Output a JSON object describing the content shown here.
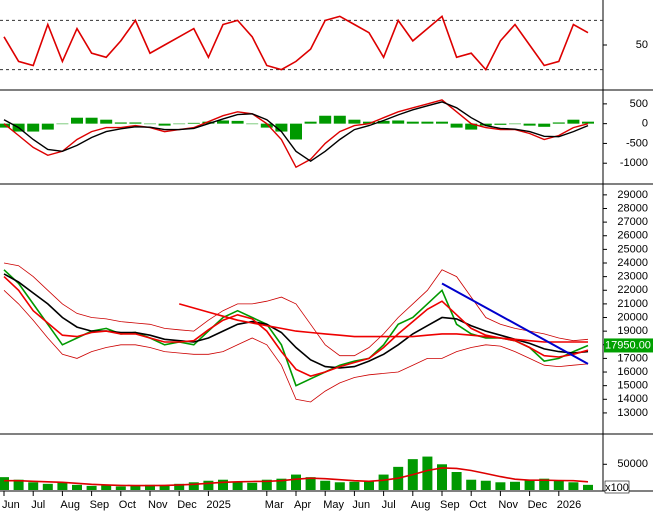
{
  "chart_data": [
    {
      "type": "line",
      "ylim": [
        0,
        100
      ],
      "yticks": [
        50
      ],
      "levels": [
        80,
        20
      ],
      "series": [
        {
          "color": "#dd0000",
          "values": [
            60,
            30,
            25,
            75,
            30,
            70,
            40,
            35,
            55,
            80,
            40,
            50,
            60,
            70,
            35,
            75,
            80,
            60,
            25,
            20,
            30,
            45,
            80,
            85,
            75,
            65,
            35,
            80,
            55,
            70,
            85,
            35,
            40,
            20,
            55,
            75,
            50,
            25,
            30,
            75,
            65
          ]
        }
      ]
    },
    {
      "type": "macd",
      "ylim": [
        -1500,
        800
      ],
      "yticks": [
        500,
        0,
        -500,
        -1000
      ],
      "histogram": {
        "color": "#009900",
        "values": [
          -100,
          -200,
          -200,
          -150,
          0,
          150,
          150,
          100,
          30,
          30,
          -10,
          -50,
          0,
          20,
          50,
          80,
          70,
          0,
          -100,
          -200,
          -400,
          50,
          200,
          200,
          100,
          50,
          70,
          80,
          50,
          50,
          50,
          -100,
          -150,
          -50,
          -30,
          -10,
          -50,
          -80,
          30,
          100,
          50
        ]
      },
      "series": [
        {
          "color": "#dd0000",
          "values": [
            0,
            -300,
            -600,
            -800,
            -700,
            -400,
            -200,
            -100,
            -100,
            -50,
            -100,
            -200,
            -150,
            -100,
            50,
            200,
            300,
            250,
            0,
            -400,
            -1100,
            -900,
            -500,
            -200,
            -50,
            0,
            150,
            300,
            400,
            500,
            600,
            300,
            0,
            -100,
            -150,
            -150,
            -250,
            -400,
            -300,
            -100,
            0
          ]
        },
        {
          "color": "#000000",
          "values": [
            100,
            -100,
            -400,
            -650,
            -700,
            -550,
            -350,
            -200,
            -130,
            -80,
            -90,
            -150,
            -150,
            -120,
            0,
            120,
            230,
            250,
            100,
            -200,
            -700,
            -950,
            -700,
            -400,
            -150,
            -50,
            80,
            220,
            350,
            450,
            550,
            400,
            150,
            -50,
            -120,
            -140,
            -200,
            -320,
            -330,
            -200,
            -50
          ]
        }
      ]
    },
    {
      "type": "price",
      "ylim": [
        11600,
        29650
      ],
      "yticks": [
        13000,
        14000,
        15000,
        16000,
        17000,
        18000,
        19000,
        20000,
        21000,
        22000,
        23000,
        24000,
        25000,
        26000,
        27000,
        28000,
        29000
      ],
      "series": [
        {
          "color": "#cc0000",
          "values": [
            24000,
            23800,
            23000,
            22000,
            21000,
            20300,
            20000,
            19900,
            19700,
            19600,
            19500,
            19200,
            19100,
            19000,
            19800,
            20500,
            21000,
            21000,
            21200,
            21500,
            21000,
            19500,
            18000,
            17200,
            17200,
            17800,
            18800,
            20000,
            21000,
            22000,
            23500,
            23000,
            21500,
            20000,
            19500,
            19200,
            19000,
            18800,
            18500,
            18300,
            18400
          ]
        },
        {
          "color": "#cc0000",
          "values": [
            22000,
            21000,
            19800,
            18500,
            17300,
            17000,
            17500,
            17800,
            18000,
            18000,
            17800,
            17500,
            17400,
            17300,
            17300,
            17500,
            18000,
            18500,
            18000,
            16500,
            14000,
            13800,
            14600,
            15200,
            15600,
            15800,
            15900,
            16000,
            16500,
            17000,
            17000,
            17500,
            17800,
            18000,
            17900,
            17500,
            17000,
            16500,
            16400,
            16500,
            16600
          ]
        },
        {
          "color": "#009900",
          "values": [
            23500,
            22500,
            21000,
            19500,
            18000,
            18500,
            19000,
            19200,
            18800,
            18900,
            18500,
            18000,
            18200,
            18000,
            19000,
            20000,
            20500,
            20000,
            19500,
            18000,
            15000,
            15500,
            16000,
            16500,
            16800,
            17000,
            18000,
            19500,
            20000,
            21000,
            22000,
            19500,
            18800,
            18500,
            18500,
            18300,
            17800,
            16800,
            17000,
            17500,
            17950
          ]
        },
        {
          "color": "#000000",
          "values": [
            23200,
            22600,
            21800,
            21000,
            20000,
            19300,
            19000,
            19000,
            18900,
            18900,
            18700,
            18400,
            18300,
            18200,
            18500,
            19000,
            19500,
            19700,
            19500,
            18900,
            17800,
            16900,
            16400,
            16300,
            16400,
            16800,
            17300,
            18000,
            18800,
            19400,
            20000,
            19900,
            19400,
            19000,
            18700,
            18400,
            18100,
            17700,
            17500,
            17400,
            17500
          ]
        },
        {
          "color": "#ee0000",
          "values": [
            23000,
            22000,
            20500,
            19600,
            18700,
            18600,
            18900,
            19000,
            18800,
            18800,
            18500,
            18200,
            18200,
            18300,
            19100,
            19800,
            20200,
            19900,
            19000,
            17500,
            16200,
            15700,
            16000,
            16400,
            16700,
            17000,
            17800,
            18800,
            19700,
            20600,
            21200,
            20200,
            19200,
            18700,
            18500,
            18300,
            17800,
            17200,
            17100,
            17300,
            17600
          ]
        },
        {
          "color": "#ee0000",
          "values": [
            null,
            null,
            null,
            null,
            null,
            null,
            null,
            null,
            null,
            null,
            null,
            null,
            21000,
            20700,
            20400,
            20100,
            19800,
            19600,
            19400,
            19200,
            19000,
            18900,
            18800,
            18700,
            18600,
            18600,
            18600,
            18600,
            18600,
            18700,
            18800,
            18800,
            18700,
            18600,
            18500,
            18400,
            18300,
            18200,
            18200,
            18200,
            18200
          ]
        }
      ],
      "trendline": {
        "color": "#0000cc",
        "from": [
          30,
          22500
        ],
        "to": [
          40,
          16600
        ]
      },
      "last_price": {
        "value": 17950,
        "label": "17950.00",
        "color": "#00a000"
      }
    },
    {
      "type": "volume",
      "ylim": [
        0,
        105000
      ],
      "yticks": [
        50000
      ],
      "unit_label": "x100",
      "categories": [
        "Jun",
        null,
        "Jul",
        null,
        "Aug",
        null,
        "Sep",
        null,
        "Oct",
        null,
        "Nov",
        null,
        "Dec",
        null,
        "2025",
        null,
        null,
        null,
        "Mar",
        null,
        "Apr",
        null,
        "May",
        null,
        "Jun",
        null,
        "Jul",
        null,
        "Aug",
        null,
        "Sep",
        null,
        "Oct",
        null,
        "Nov",
        null,
        "Dec",
        null,
        "2026",
        null,
        null
      ],
      "values": [
        25000,
        20000,
        15000,
        12000,
        15000,
        10000,
        8000,
        9000,
        7000,
        8000,
        10000,
        9000,
        12000,
        15000,
        18000,
        20000,
        15000,
        14000,
        20000,
        22000,
        30000,
        25000,
        18000,
        15000,
        16000,
        18000,
        30000,
        45000,
        60000,
        65000,
        50000,
        35000,
        20000,
        18000,
        15000,
        16000,
        20000,
        22000,
        18000,
        15000,
        10000
      ],
      "color": "#009900",
      "series": [
        {
          "color": "#dd0000",
          "values": [
            18000,
            18000,
            17000,
            16000,
            15000,
            13000,
            11000,
            10000,
            9000,
            8500,
            8500,
            9000,
            10000,
            11000,
            13000,
            15000,
            16000,
            16500,
            17000,
            18000,
            21000,
            23000,
            22000,
            20000,
            18000,
            17000,
            19000,
            23000,
            30000,
            38000,
            43000,
            42000,
            38000,
            32000,
            26000,
            21000,
            19000,
            19000,
            18500,
            18000,
            16000
          ]
        }
      ]
    }
  ]
}
